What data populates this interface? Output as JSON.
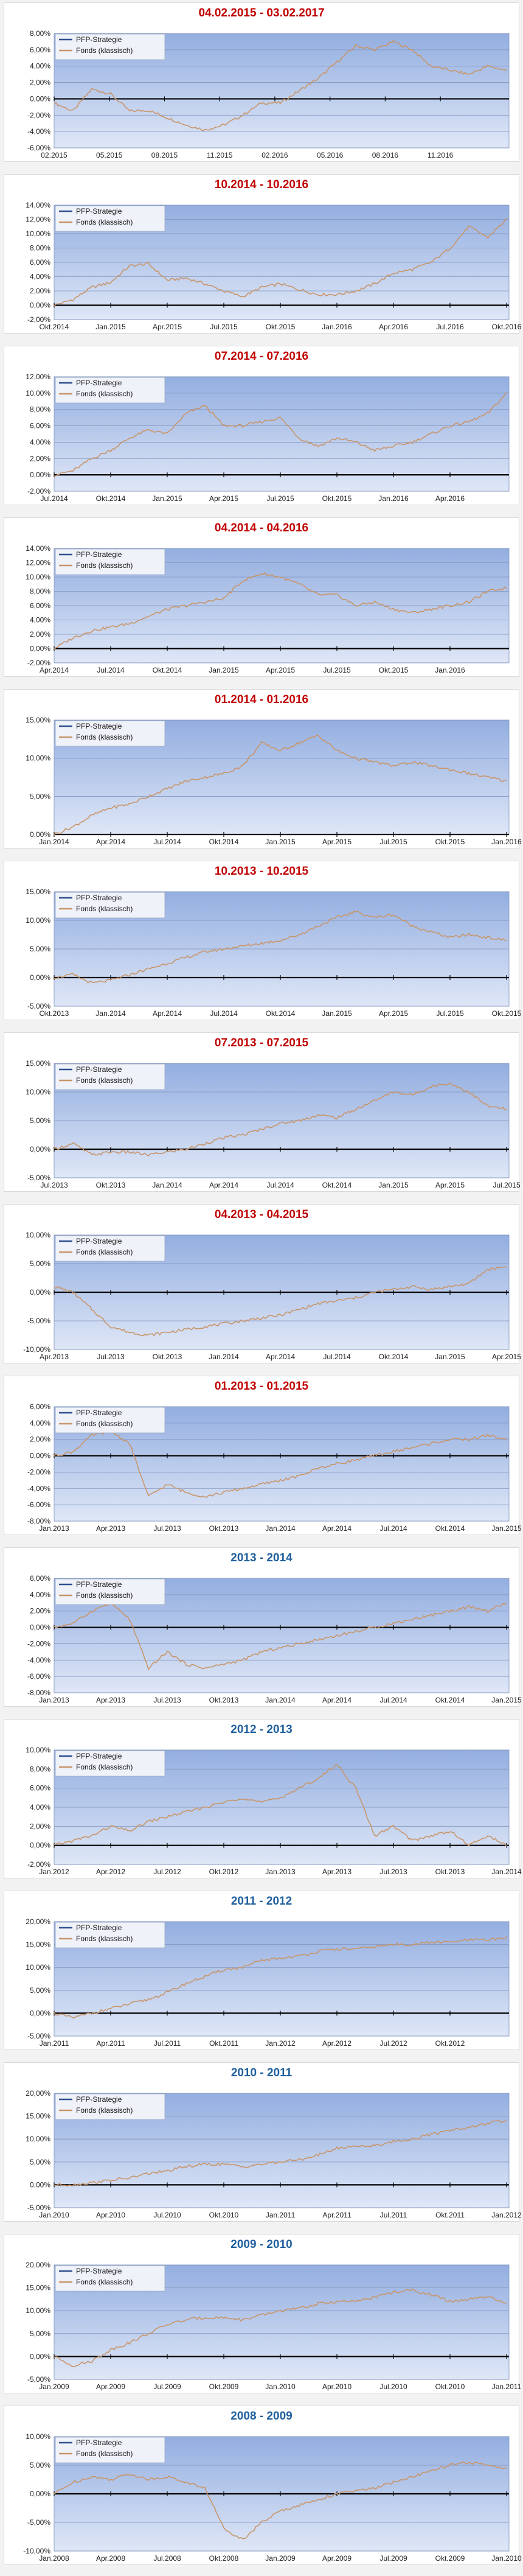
{
  "legend": {
    "series": [
      "PFP-Strategie",
      "Fonds (klassisch)"
    ],
    "colors": [
      "#2f4f8f",
      "#c8956a"
    ]
  },
  "chart_data": [
    {
      "type": "line",
      "title": "04.02.2015 - 03.02.2017",
      "title_color": "red",
      "ylim": [
        -6,
        8
      ],
      "yticks": [
        -6,
        -4,
        -2,
        0,
        2,
        4,
        6,
        8
      ],
      "ydec": 2,
      "xticks": [
        "02.2015",
        "05.2015",
        "08.2015",
        "11.2015",
        "02.2016",
        "05.2016",
        "08.2016",
        "11.2016"
      ],
      "x_end": 8.2,
      "series": [
        {
          "name": "Fonds (klassisch)",
          "values": [
            -0.5,
            -1.5,
            1.2,
            0.6,
            -1.5,
            -1.4,
            -2.3,
            -3.2,
            -3.8,
            -3.2,
            -2.0,
            -0.5,
            -0.5,
            1.0,
            2.5,
            4.5,
            6.5,
            6.0,
            7.0,
            6.0,
            4.0,
            3.5,
            3.0,
            4.0,
            3.5
          ]
        }
      ]
    },
    {
      "type": "line",
      "title": "10.2014 - 10.2016",
      "title_color": "red",
      "ylim": [
        -2,
        14
      ],
      "yticks": [
        -2,
        0,
        2,
        4,
        6,
        8,
        10,
        12,
        14
      ],
      "ydec": 2,
      "xticks": [
        "Okt.2014",
        "Jan.2015",
        "Apr.2015",
        "Jul.2015",
        "Okt.2015",
        "Jan.2016",
        "Apr.2016",
        "Jul.2016",
        "Okt.2016"
      ],
      "x_end": 8.0,
      "series": [
        {
          "name": "Fonds (klassisch)",
          "values": [
            0.0,
            0.8,
            2.5,
            3.2,
            5.5,
            5.8,
            3.5,
            3.8,
            3.0,
            2.0,
            1.2,
            2.5,
            3.0,
            2.2,
            1.5,
            1.5,
            2.0,
            3.0,
            4.5,
            5.0,
            6.0,
            8.0,
            11.0,
            9.5,
            12.0
          ]
        }
      ]
    },
    {
      "type": "line",
      "title": "07.2014 - 07.2016",
      "title_color": "red",
      "ylim": [
        -2,
        12
      ],
      "yticks": [
        -2,
        0,
        2,
        4,
        6,
        8,
        10,
        12
      ],
      "ydec": 2,
      "xticks": [
        "Jul.2014",
        "Okt.2014",
        "Jan.2015",
        "Apr.2015",
        "Jul.2015",
        "Okt.2015",
        "Jan.2016",
        "Apr.2016"
      ],
      "x_end": 8.0,
      "series": [
        {
          "name": "Fonds (klassisch)",
          "values": [
            0.0,
            0.5,
            2.0,
            3.0,
            4.5,
            5.5,
            5.0,
            7.5,
            8.5,
            6.0,
            6.0,
            6.5,
            7.0,
            4.5,
            3.5,
            4.5,
            4.0,
            3.0,
            3.5,
            4.0,
            5.0,
            6.0,
            6.5,
            7.5,
            10.0
          ]
        }
      ]
    },
    {
      "type": "line",
      "title": "04.2014 - 04.2016",
      "title_color": "red",
      "ylim": [
        -2,
        14
      ],
      "yticks": [
        -2,
        0,
        2,
        4,
        6,
        8,
        10,
        12,
        14
      ],
      "ydec": 2,
      "xticks": [
        "Apr.2014",
        "Jul.2014",
        "Okt.2014",
        "Jan.2015",
        "Apr.2015",
        "Jul.2015",
        "Okt.2015",
        "Jan.2016"
      ],
      "x_end": 8.0,
      "series": [
        {
          "name": "Fonds (klassisch)",
          "values": [
            0.0,
            1.5,
            2.5,
            3.0,
            3.5,
            4.5,
            5.5,
            6.0,
            6.5,
            7.0,
            9.5,
            10.5,
            10.0,
            9.0,
            7.5,
            7.5,
            6.0,
            6.5,
            5.5,
            5.0,
            5.5,
            6.0,
            6.5,
            8.0,
            8.5
          ]
        }
      ]
    },
    {
      "type": "line",
      "title": "01.2014 - 01.2016",
      "title_color": "red",
      "ylim": [
        0,
        15
      ],
      "yticks": [
        0,
        5,
        10,
        15
      ],
      "ydec": 2,
      "xticks": [
        "Jan.2014",
        "Apr.2014",
        "Jul.2014",
        "Okt.2014",
        "Jan.2015",
        "Apr.2015",
        "Jul.2015",
        "Okt.2015",
        "Jan.2016"
      ],
      "x_end": 8.0,
      "series": [
        {
          "name": "Fonds (klassisch)",
          "values": [
            0.0,
            1.0,
            2.5,
            3.5,
            4.0,
            5.0,
            6.0,
            7.0,
            7.5,
            8.0,
            9.0,
            12.0,
            11.0,
            12.0,
            13.0,
            11.0,
            10.0,
            9.5,
            9.0,
            9.5,
            9.0,
            8.5,
            8.0,
            7.5,
            7.0
          ]
        }
      ]
    },
    {
      "type": "line",
      "title": "10.2013 - 10.2015",
      "title_color": "red",
      "ylim": [
        -5,
        15
      ],
      "yticks": [
        -5,
        0,
        5,
        10,
        15
      ],
      "ydec": 2,
      "xticks": [
        "Okt.2013",
        "Jan.2014",
        "Apr.2014",
        "Jul.2014",
        "Okt.2014",
        "Jan.2015",
        "Apr.2015",
        "Jul.2015",
        "Okt.2015"
      ],
      "x_end": 8.0,
      "series": [
        {
          "name": "Fonds (klassisch)",
          "values": [
            0.0,
            0.5,
            -1.0,
            -0.5,
            0.5,
            1.5,
            2.5,
            3.5,
            4.5,
            5.0,
            5.5,
            6.0,
            6.5,
            7.5,
            9.0,
            10.5,
            11.5,
            10.5,
            11.0,
            9.0,
            8.0,
            7.0,
            7.5,
            7.0,
            6.5
          ]
        }
      ]
    },
    {
      "type": "line",
      "title": "07.2013 - 07.2015",
      "title_color": "red",
      "ylim": [
        -5,
        15
      ],
      "yticks": [
        -5,
        0,
        5,
        10,
        15
      ],
      "ydec": 2,
      "xticks": [
        "Jul.2013",
        "Okt.2013",
        "Jan.2014",
        "Apr.2014",
        "Jul.2014",
        "Okt.2014",
        "Jan.2015",
        "Apr.2015",
        "Jul.2015"
      ],
      "x_end": 8.0,
      "series": [
        {
          "name": "Fonds (klassisch)",
          "values": [
            0.0,
            1.0,
            -1.0,
            -0.5,
            -0.5,
            -1.0,
            -0.5,
            0.0,
            1.0,
            2.0,
            2.5,
            3.5,
            4.5,
            5.0,
            6.0,
            5.5,
            7.0,
            8.5,
            10.0,
            9.5,
            11.0,
            11.5,
            10.0,
            7.5,
            7.0
          ]
        }
      ]
    },
    {
      "type": "line",
      "title": "04.2013 - 04.2015",
      "title_color": "red",
      "ylim": [
        -10,
        10
      ],
      "yticks": [
        -10,
        -5,
        0,
        5,
        10
      ],
      "ydec": 2,
      "xticks": [
        "Apr.2013",
        "Jul.2013",
        "Okt.2013",
        "Jan.2014",
        "Apr.2014",
        "Jul.2014",
        "Okt.2014",
        "Jan.2015",
        "Apr.2015"
      ],
      "x_end": 8.0,
      "series": [
        {
          "name": "Fonds (klassisch)",
          "values": [
            1.0,
            0.0,
            -3.0,
            -6.0,
            -7.0,
            -7.5,
            -7.0,
            -6.5,
            -6.0,
            -5.5,
            -5.0,
            -4.5,
            -4.0,
            -3.0,
            -2.0,
            -1.5,
            -1.0,
            0.0,
            0.5,
            1.0,
            0.5,
            1.0,
            1.5,
            4.0,
            4.5
          ]
        }
      ]
    },
    {
      "type": "line",
      "title": "01.2013 - 01.2015",
      "title_color": "red",
      "ylim": [
        -8,
        6
      ],
      "yticks": [
        -8,
        -6,
        -4,
        -2,
        0,
        2,
        4,
        6
      ],
      "ydec": 2,
      "xticks": [
        "Jan.2013",
        "Apr.2013",
        "Jul.2013",
        "Okt.2013",
        "Jan.2014",
        "Apr.2014",
        "Jul.2014",
        "Okt.2014",
        "Jan.2015"
      ],
      "x_end": 8.0,
      "series": [
        {
          "name": "Fonds (klassisch)",
          "values": [
            0.0,
            0.5,
            2.5,
            3.0,
            1.5,
            -5.0,
            -3.5,
            -4.5,
            -5.0,
            -4.5,
            -4.0,
            -3.5,
            -3.0,
            -2.5,
            -1.5,
            -1.0,
            -0.5,
            0.0,
            0.5,
            1.0,
            1.5,
            2.0,
            2.0,
            2.5,
            2.0
          ]
        }
      ]
    },
    {
      "type": "line",
      "title": "2013 - 2014",
      "title_color": "blue",
      "ylim": [
        -8,
        6
      ],
      "yticks": [
        -8,
        -6,
        -4,
        -2,
        0,
        2,
        4,
        6
      ],
      "ydec": 2,
      "xticks": [
        "Jan.2013",
        "Apr.2013",
        "Jul.2013",
        "Okt.2013",
        "Jan.2014",
        "Apr.2014",
        "Jul.2014",
        "Okt.2014",
        "Jan.2015"
      ],
      "x_end": 8.0,
      "series": [
        {
          "name": "Fonds (klassisch)",
          "values": [
            0.0,
            0.5,
            2.0,
            3.0,
            1.0,
            -5.0,
            -3.0,
            -4.5,
            -5.0,
            -4.5,
            -4.0,
            -3.0,
            -2.5,
            -2.0,
            -1.5,
            -1.0,
            -0.5,
            0.0,
            0.5,
            1.0,
            1.5,
            2.0,
            2.5,
            2.0,
            3.0
          ]
        }
      ]
    },
    {
      "type": "line",
      "title": "2012 - 2013",
      "title_color": "blue",
      "ylim": [
        -2,
        10
      ],
      "yticks": [
        -2,
        0,
        2,
        4,
        6,
        8,
        10
      ],
      "ydec": 2,
      "xticks": [
        "Jan.2012",
        "Apr.2012",
        "Jul.2012",
        "Okt.2012",
        "Jan.2013",
        "Apr.2013",
        "Jul.2013",
        "Okt.2013",
        "Jan.2014"
      ],
      "x_end": 8.0,
      "series": [
        {
          "name": "Fonds (klassisch)",
          "values": [
            0.0,
            0.5,
            1.0,
            2.0,
            1.5,
            2.5,
            3.0,
            3.5,
            4.0,
            4.5,
            5.0,
            4.5,
            5.0,
            6.0,
            7.0,
            8.5,
            6.0,
            1.0,
            2.0,
            0.5,
            1.0,
            1.5,
            0.0,
            1.0,
            0.0
          ]
        }
      ]
    },
    {
      "type": "line",
      "title": "2011 - 2012",
      "title_color": "blue",
      "ylim": [
        -5,
        20
      ],
      "yticks": [
        -5,
        0,
        5,
        10,
        15,
        20
      ],
      "ydec": 2,
      "xticks": [
        "Jan.2011",
        "Apr.2011",
        "Jul.2011",
        "Okt.2011",
        "Jan.2012",
        "Apr.2012",
        "Jul.2012",
        "Okt.2012"
      ],
      "x_end": 8.0,
      "series": [
        {
          "name": "Fonds (klassisch)",
          "values": [
            0.0,
            -1.0,
            0.0,
            1.0,
            2.0,
            3.0,
            4.5,
            6.5,
            8.0,
            9.5,
            10.0,
            11.5,
            12.0,
            12.5,
            13.5,
            14.0,
            14.0,
            14.5,
            15.0,
            15.0,
            15.5,
            15.5,
            16.0,
            16.0,
            16.5
          ]
        }
      ]
    },
    {
      "type": "line",
      "title": "2010 - 2011",
      "title_color": "blue",
      "ylim": [
        -5,
        20
      ],
      "yticks": [
        -5,
        0,
        5,
        10,
        15,
        20
      ],
      "ydec": 2,
      "xticks": [
        "Jan.2010",
        "Apr.2010",
        "Jul.2010",
        "Okt.2010",
        "Jan.2011",
        "Apr.2011",
        "Jul.2011",
        "Okt.2011",
        "Jan.2012"
      ],
      "x_end": 8.0,
      "series": [
        {
          "name": "Fonds (klassisch)",
          "values": [
            0.0,
            0.0,
            0.5,
            1.0,
            1.5,
            2.5,
            3.0,
            4.0,
            4.5,
            4.5,
            4.0,
            4.5,
            5.0,
            5.5,
            6.5,
            8.0,
            8.5,
            8.5,
            9.5,
            10.0,
            11.0,
            12.0,
            12.5,
            13.5,
            14.0
          ]
        }
      ]
    },
    {
      "type": "line",
      "title": "2009 - 2010",
      "title_color": "blue",
      "ylim": [
        -5,
        20
      ],
      "yticks": [
        -5,
        0,
        5,
        10,
        15,
        20
      ],
      "ydec": 2,
      "xticks": [
        "Jan.2009",
        "Apr.2009",
        "Jul.2009",
        "Okt.2009",
        "Jan.2010",
        "Apr.2010",
        "Jul.2010",
        "Okt.2010",
        "Jan.2011"
      ],
      "x_end": 8.0,
      "series": [
        {
          "name": "Fonds (klassisch)",
          "values": [
            0.0,
            -2.0,
            -1.0,
            1.5,
            3.0,
            5.0,
            7.0,
            8.0,
            8.5,
            8.5,
            8.0,
            9.0,
            10.0,
            10.5,
            11.5,
            12.0,
            12.0,
            13.0,
            14.0,
            14.5,
            13.5,
            12.0,
            12.5,
            13.0,
            11.5
          ]
        }
      ]
    },
    {
      "type": "line",
      "title": "2008 - 2009",
      "title_color": "blue",
      "ylim": [
        -10,
        10
      ],
      "yticks": [
        -10,
        -5,
        0,
        5,
        10
      ],
      "ydec": 2,
      "xticks": [
        "Jan.2008",
        "Apr.2008",
        "Jul.2008",
        "Okt.2008",
        "Jan.2009",
        "Apr.2009",
        "Jul.2009",
        "Okt.2009",
        "Jan.2010"
      ],
      "x_end": 8.0,
      "series": [
        {
          "name": "Fonds (klassisch)",
          "values": [
            0.0,
            2.0,
            3.0,
            2.5,
            3.5,
            2.5,
            3.0,
            2.0,
            1.0,
            -6.0,
            -8.0,
            -5.0,
            -3.0,
            -2.0,
            -1.0,
            0.0,
            0.5,
            1.0,
            2.0,
            3.0,
            4.0,
            5.0,
            5.5,
            5.0,
            4.5
          ]
        }
      ]
    }
  ]
}
